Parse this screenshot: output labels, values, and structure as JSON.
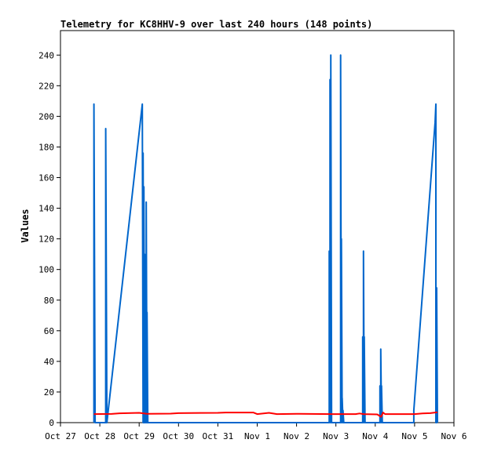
{
  "chart_data": {
    "type": "line",
    "title": "Telemetry for KC8HHV-9 over last 240 hours (148 points)",
    "xlabel": "",
    "ylabel": "Values",
    "ylim": [
      0,
      256
    ],
    "yticks": [
      0,
      20,
      40,
      60,
      80,
      100,
      120,
      140,
      160,
      180,
      200,
      220,
      240
    ],
    "xlim": [
      0,
      10
    ],
    "xticks": [
      {
        "pos": 0,
        "label": "Oct 27"
      },
      {
        "pos": 1,
        "label": "Oct 28"
      },
      {
        "pos": 2,
        "label": "Oct 29"
      },
      {
        "pos": 3,
        "label": "Oct 30"
      },
      {
        "pos": 4,
        "label": "Oct 31"
      },
      {
        "pos": 5,
        "label": "Nov 1"
      },
      {
        "pos": 6,
        "label": "Nov 2"
      },
      {
        "pos": 7,
        "label": "Nov 3"
      },
      {
        "pos": 8,
        "label": "Nov 4"
      },
      {
        "pos": 9,
        "label": "Nov 5"
      },
      {
        "pos": 10,
        "label": "Nov 6"
      }
    ],
    "grid": false,
    "legend": "none",
    "series": [
      {
        "color": "#0066cc",
        "points": [
          [
            0.85,
            0
          ],
          [
            0.85,
            208
          ],
          [
            0.88,
            0
          ],
          [
            1.15,
            0
          ],
          [
            1.15,
            192
          ],
          [
            1.18,
            0
          ],
          [
            2.08,
            208
          ],
          [
            2.1,
            0
          ],
          [
            2.1,
            176
          ],
          [
            2.12,
            0
          ],
          [
            2.12,
            154
          ],
          [
            2.14,
            0
          ],
          [
            2.14,
            110
          ],
          [
            2.16,
            0
          ],
          [
            2.16,
            66
          ],
          [
            2.18,
            0
          ],
          [
            2.18,
            144
          ],
          [
            2.2,
            0
          ],
          [
            2.2,
            72
          ],
          [
            2.22,
            0
          ],
          [
            6.83,
            0
          ],
          [
            6.83,
            112
          ],
          [
            6.85,
            0
          ],
          [
            6.85,
            224
          ],
          [
            6.87,
            0
          ],
          [
            6.87,
            240
          ],
          [
            6.89,
            0
          ],
          [
            7.12,
            0
          ],
          [
            7.12,
            240
          ],
          [
            7.14,
            0
          ],
          [
            7.14,
            120
          ],
          [
            7.16,
            0
          ],
          [
            7.16,
            16
          ],
          [
            7.18,
            0
          ],
          [
            7.18,
            8
          ],
          [
            7.2,
            0
          ],
          [
            7.68,
            0
          ],
          [
            7.68,
            56
          ],
          [
            7.7,
            0
          ],
          [
            7.7,
            112
          ],
          [
            7.72,
            0
          ],
          [
            7.72,
            56
          ],
          [
            7.74,
            0
          ],
          [
            8.12,
            0
          ],
          [
            8.12,
            24
          ],
          [
            8.14,
            0
          ],
          [
            8.14,
            48
          ],
          [
            8.16,
            0
          ],
          [
            8.16,
            24
          ],
          [
            8.18,
            0
          ],
          [
            8.98,
            0
          ],
          [
            8.98,
            8
          ],
          [
            9.52,
            196
          ],
          [
            9.54,
            208
          ],
          [
            9.54,
            0
          ],
          [
            9.56,
            0
          ],
          [
            9.56,
            88
          ],
          [
            9.58,
            0
          ]
        ]
      },
      {
        "color": "#ff0000",
        "points": [
          [
            0.85,
            5.6
          ],
          [
            1.3,
            5.7
          ],
          [
            1.5,
            6.1
          ],
          [
            2.0,
            6.4
          ],
          [
            2.2,
            5.8
          ],
          [
            2.8,
            5.9
          ],
          [
            3.0,
            6.2
          ],
          [
            4.0,
            6.4
          ],
          [
            4.2,
            6.6
          ],
          [
            4.9,
            6.6
          ],
          [
            5.0,
            5.6
          ],
          [
            5.3,
            6.4
          ],
          [
            5.5,
            5.6
          ],
          [
            6.0,
            5.8
          ],
          [
            6.9,
            5.6
          ],
          [
            7.5,
            5.6
          ],
          [
            7.6,
            6.0
          ],
          [
            7.7,
            5.6
          ],
          [
            8.05,
            5.4
          ],
          [
            8.15,
            3.8
          ],
          [
            8.2,
            6.6
          ],
          [
            8.25,
            5.6
          ],
          [
            9.0,
            5.6
          ],
          [
            9.2,
            6.0
          ],
          [
            9.4,
            6.2
          ],
          [
            9.58,
            6.8
          ]
        ]
      }
    ]
  }
}
